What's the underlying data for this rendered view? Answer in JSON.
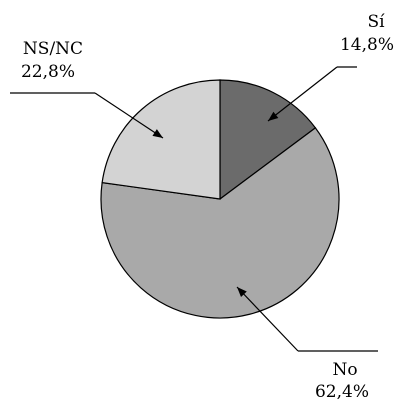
{
  "chart_data": {
    "type": "pie",
    "title": "",
    "slices": [
      {
        "label": "Sí",
        "value": 14.8,
        "value_text": "14,8%",
        "color": "#6b6b6b"
      },
      {
        "label": "No",
        "value": 62.4,
        "value_text": "62,4%",
        "color": "#a9a9a9"
      },
      {
        "label": "NS/NC",
        "value": 22.8,
        "value_text": "22,8%",
        "color": "#d3d3d3"
      }
    ],
    "start_angle_deg": 0,
    "direction": "clockwise",
    "outline_color": "#000000"
  }
}
